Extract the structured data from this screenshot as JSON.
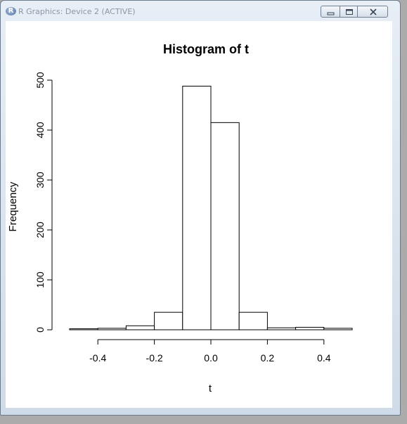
{
  "window": {
    "title": "R Graphics: Device 2 (ACTIVE)",
    "app_icon_letter": "R",
    "buttons": [
      "minimize",
      "maximize",
      "close"
    ]
  },
  "chart_data": {
    "type": "bar",
    "title": "Histogram of t",
    "xlabel": "t",
    "ylabel": "Frequency",
    "bin_edges": [
      -0.5,
      -0.4,
      -0.3,
      -0.2,
      -0.1,
      0.0,
      0.1,
      0.2,
      0.3,
      0.4,
      0.5
    ],
    "values": [
      2,
      3,
      8,
      35,
      488,
      415,
      35,
      4,
      5,
      3
    ],
    "xlim": [
      -0.5,
      0.5
    ],
    "ylim": [
      0,
      500
    ],
    "x_ticks": [
      {
        "value": -0.4,
        "label": "-0.4"
      },
      {
        "value": -0.2,
        "label": "-0.2"
      },
      {
        "value": 0.0,
        "label": "0.0"
      },
      {
        "value": 0.2,
        "label": "0.2"
      },
      {
        "value": 0.4,
        "label": "0.4"
      }
    ],
    "y_ticks": [
      {
        "value": 0,
        "label": "0"
      },
      {
        "value": 100,
        "label": "100"
      },
      {
        "value": 200,
        "label": "200"
      },
      {
        "value": 300,
        "label": "300"
      },
      {
        "value": 400,
        "label": "400"
      },
      {
        "value": 500,
        "label": "500"
      }
    ],
    "grid": false,
    "bar_fill": "#ffffff",
    "bar_stroke": "#000000"
  }
}
